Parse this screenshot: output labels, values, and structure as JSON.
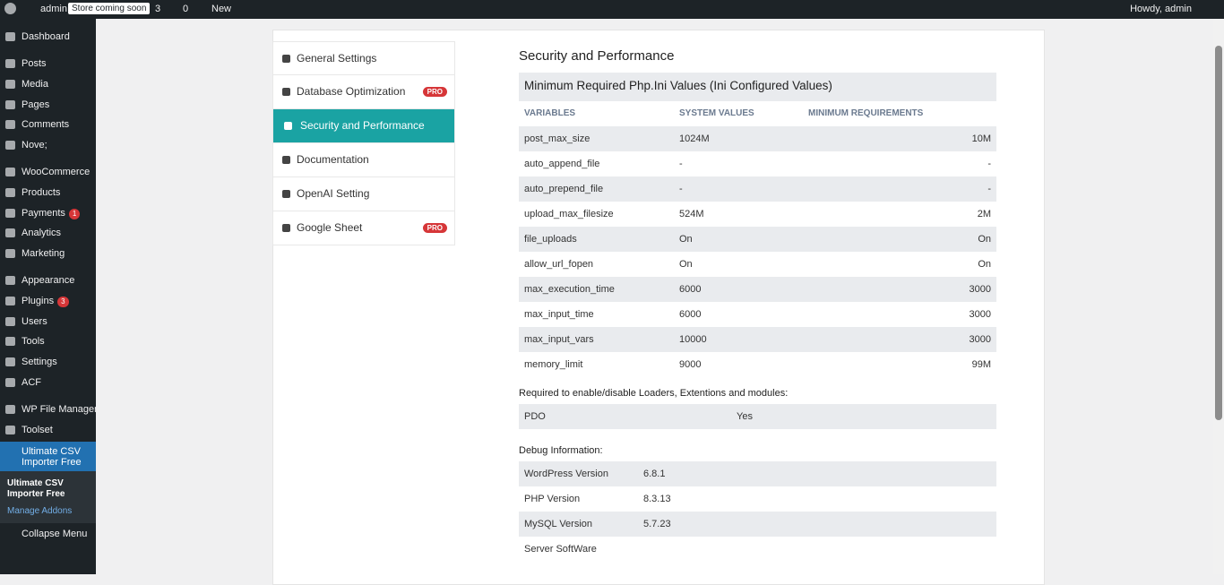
{
  "admin_bar": {
    "site": "admin",
    "store_badge": "Store coming soon",
    "updates": "3",
    "comments": "0",
    "new": "New",
    "howdy": "Howdy, admin"
  },
  "sidebar": {
    "groups": [
      [
        {
          "label": "Dashboard"
        }
      ],
      [
        {
          "label": "Posts"
        },
        {
          "label": "Media"
        },
        {
          "label": "Pages"
        },
        {
          "label": "Comments"
        },
        {
          "label": "Nove;"
        }
      ],
      [
        {
          "label": "WooCommerce"
        },
        {
          "label": "Products"
        },
        {
          "label": "Payments",
          "badge": "1"
        },
        {
          "label": "Analytics"
        },
        {
          "label": "Marketing"
        }
      ],
      [
        {
          "label": "Appearance"
        },
        {
          "label": "Plugins",
          "badge": "3"
        },
        {
          "label": "Users"
        },
        {
          "label": "Tools"
        },
        {
          "label": "Settings"
        },
        {
          "label": "ACF"
        }
      ],
      [
        {
          "label": "WP File Manager"
        },
        {
          "label": "Toolset"
        }
      ]
    ],
    "active": "Ultimate CSV Importer Free",
    "submenu": [
      "Ultimate CSV Importer Free",
      "Manage Addons"
    ],
    "collapse": "Collapse Menu"
  },
  "tabs": [
    {
      "label": "General Settings"
    },
    {
      "label": "Database Optimization",
      "pro": "PRO"
    },
    {
      "label": "Security and Performance",
      "active": true
    },
    {
      "label": "Documentation"
    },
    {
      "label": "OpenAI Setting"
    },
    {
      "label": "Google Sheet",
      "pro": "PRO"
    }
  ],
  "content": {
    "title": "Security and Performance",
    "table_title": "Minimum Required Php.Ini Values (Ini Configured Values)",
    "headers": [
      "VARIABLES",
      "SYSTEM VALUES",
      "MINIMUM REQUIREMENTS"
    ],
    "rows": [
      [
        "post_max_size",
        "1024M",
        "10M"
      ],
      [
        "auto_append_file",
        "-",
        "-"
      ],
      [
        "auto_prepend_file",
        "-",
        "-"
      ],
      [
        "upload_max_filesize",
        "524M",
        "2M"
      ],
      [
        "file_uploads",
        "On",
        "On"
      ],
      [
        "allow_url_fopen",
        "On",
        "On"
      ],
      [
        "max_execution_time",
        "6000",
        "3000"
      ],
      [
        "max_input_time",
        "6000",
        "3000"
      ],
      [
        "max_input_vars",
        "10000",
        "3000"
      ],
      [
        "memory_limit",
        "9000",
        "99M"
      ]
    ],
    "loaders_title": "Required to enable/disable Loaders, Extentions and modules:",
    "loaders_rows": [
      [
        "PDO",
        "Yes"
      ]
    ],
    "debug_title": "Debug Information:",
    "debug_rows": [
      [
        "WordPress Version",
        "6.8.1"
      ],
      [
        "PHP Version",
        "8.3.13"
      ],
      [
        "MySQL Version",
        "5.7.23"
      ],
      [
        "Server SoftWare",
        ""
      ]
    ]
  }
}
